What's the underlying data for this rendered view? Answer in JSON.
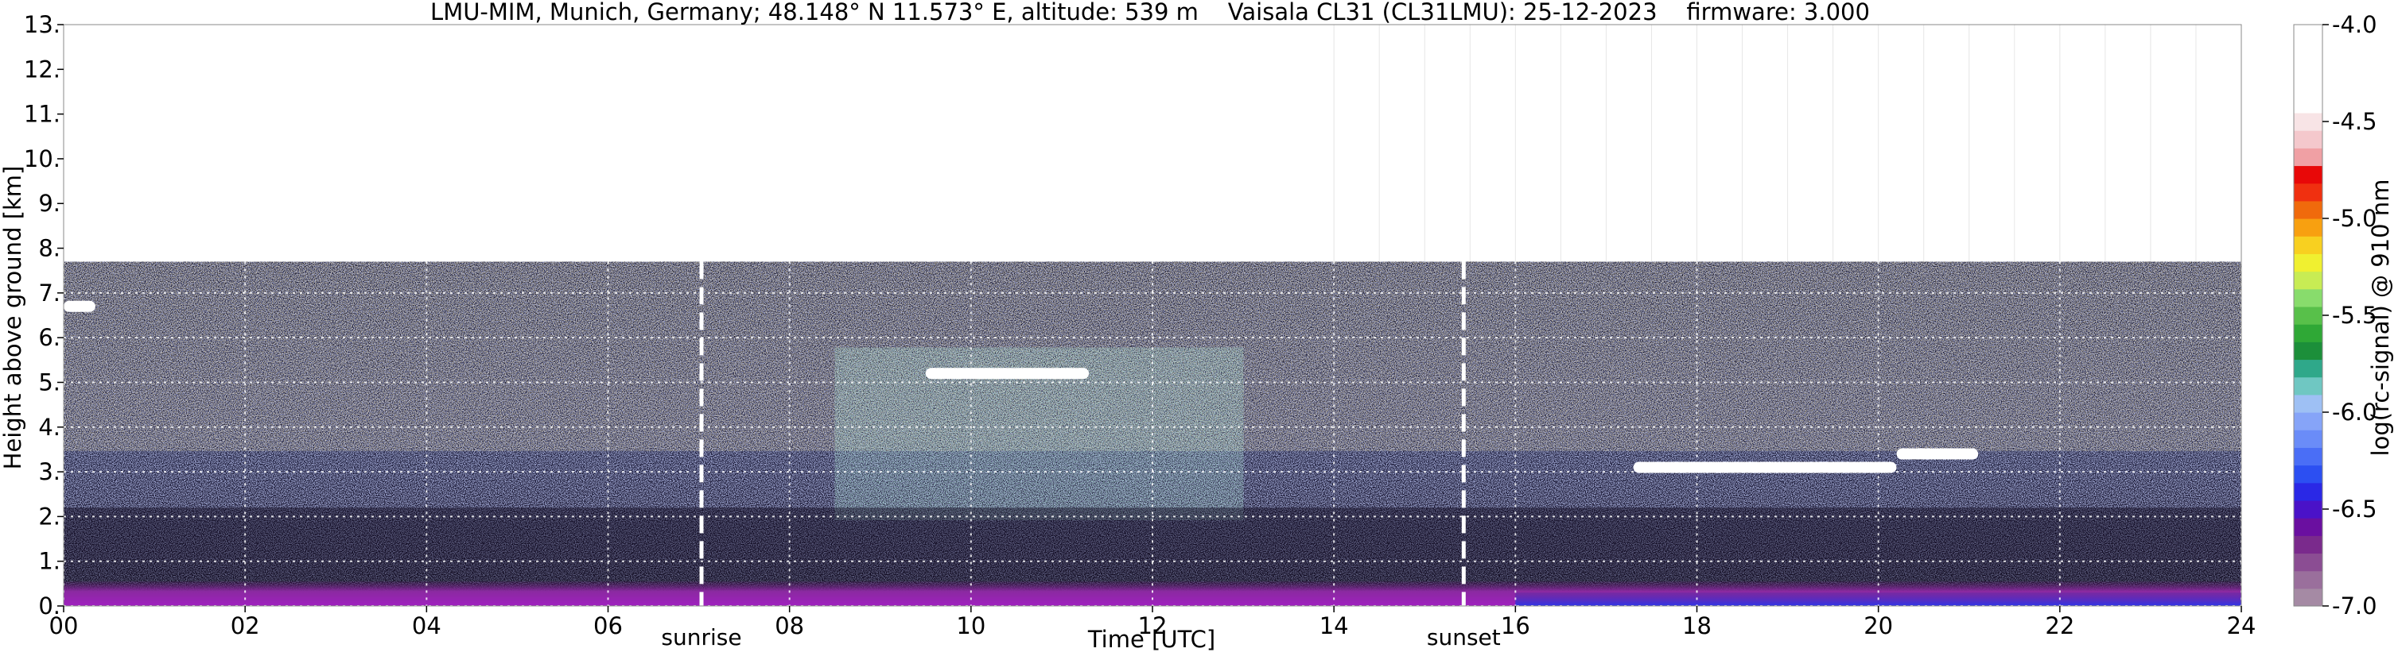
{
  "chart_data": {
    "type": "heatmap",
    "title": "LMU-MIM, Munich, Germany; 48.148° N 11.573° E, altitude: 539 m    Vaisala CL31 (CL31LMU): 25-12-2023    firmware: 3.000",
    "xlabel": "Time [UTC]",
    "ylabel": "Height above ground [km]",
    "xlim": [
      0,
      24
    ],
    "ylim": [
      0,
      13
    ],
    "x_ticks": [
      0,
      2,
      4,
      6,
      8,
      10,
      12,
      14,
      16,
      18,
      20,
      22,
      24
    ],
    "x_tick_labels": [
      "00",
      "02",
      "04",
      "06",
      "08",
      "10",
      "12",
      "14",
      "16",
      "18",
      "20",
      "22",
      "24"
    ],
    "y_ticks": [
      0,
      1,
      2,
      3,
      4,
      5,
      6,
      7,
      8,
      9,
      10,
      11,
      12,
      13
    ],
    "y_tick_labels": [
      "0.",
      "1.",
      "2.",
      "3.",
      "4.",
      "5.",
      "6.",
      "7.",
      "8.",
      "9.",
      "10.",
      "11.",
      "12.",
      "13."
    ],
    "grid": true,
    "data_top_height_km": 7.7,
    "markers": [
      {
        "label": "sunrise",
        "x": 7.03
      },
      {
        "label": "sunset",
        "x": 15.43
      }
    ],
    "colorbar": {
      "label": "log(rc-signal) @ 910 nm",
      "range": [
        -7.0,
        -4.0
      ],
      "ticks": [
        -7.0,
        -6.5,
        -6.0,
        -5.5,
        -5.0,
        -4.5,
        -4.0
      ],
      "tick_labels": [
        "-7.0",
        "-6.5",
        "-6.0",
        "-5.5",
        "-5.0",
        "-4.5",
        "-4.0"
      ],
      "colors": [
        "#a58aa4",
        "#9a6f9c",
        "#8b4d93",
        "#7a2a8c",
        "#6a0fa0",
        "#4a12c8",
        "#2a28e6",
        "#2c4ff2",
        "#4a6ef6",
        "#6a8cf8",
        "#86a4f8",
        "#9ec0f4",
        "#6fc7c2",
        "#2fa88a",
        "#1c8f3a",
        "#2fa836",
        "#58c04a",
        "#88dc6c",
        "#c8ec54",
        "#f0f030",
        "#f8d020",
        "#f8a010",
        "#f06a0c",
        "#f03010",
        "#e80808",
        "#f0a0a4",
        "#f4c8cc",
        "#f8e4e6",
        "#ffffff",
        "#ffffff",
        "#ffffff",
        "#ffffff",
        "#ffffff"
      ]
    },
    "cloud_layers": [
      {
        "x_start": 9.5,
        "x_end": 11.3,
        "height_km": 5.2
      },
      {
        "x_start": 17.3,
        "x_end": 20.2,
        "height_km": 3.1
      },
      {
        "x_start": 20.2,
        "x_end": 21.1,
        "height_km": 3.4
      },
      {
        "x_start": 0.0,
        "x_end": 0.35,
        "height_km": 6.7
      }
    ]
  }
}
